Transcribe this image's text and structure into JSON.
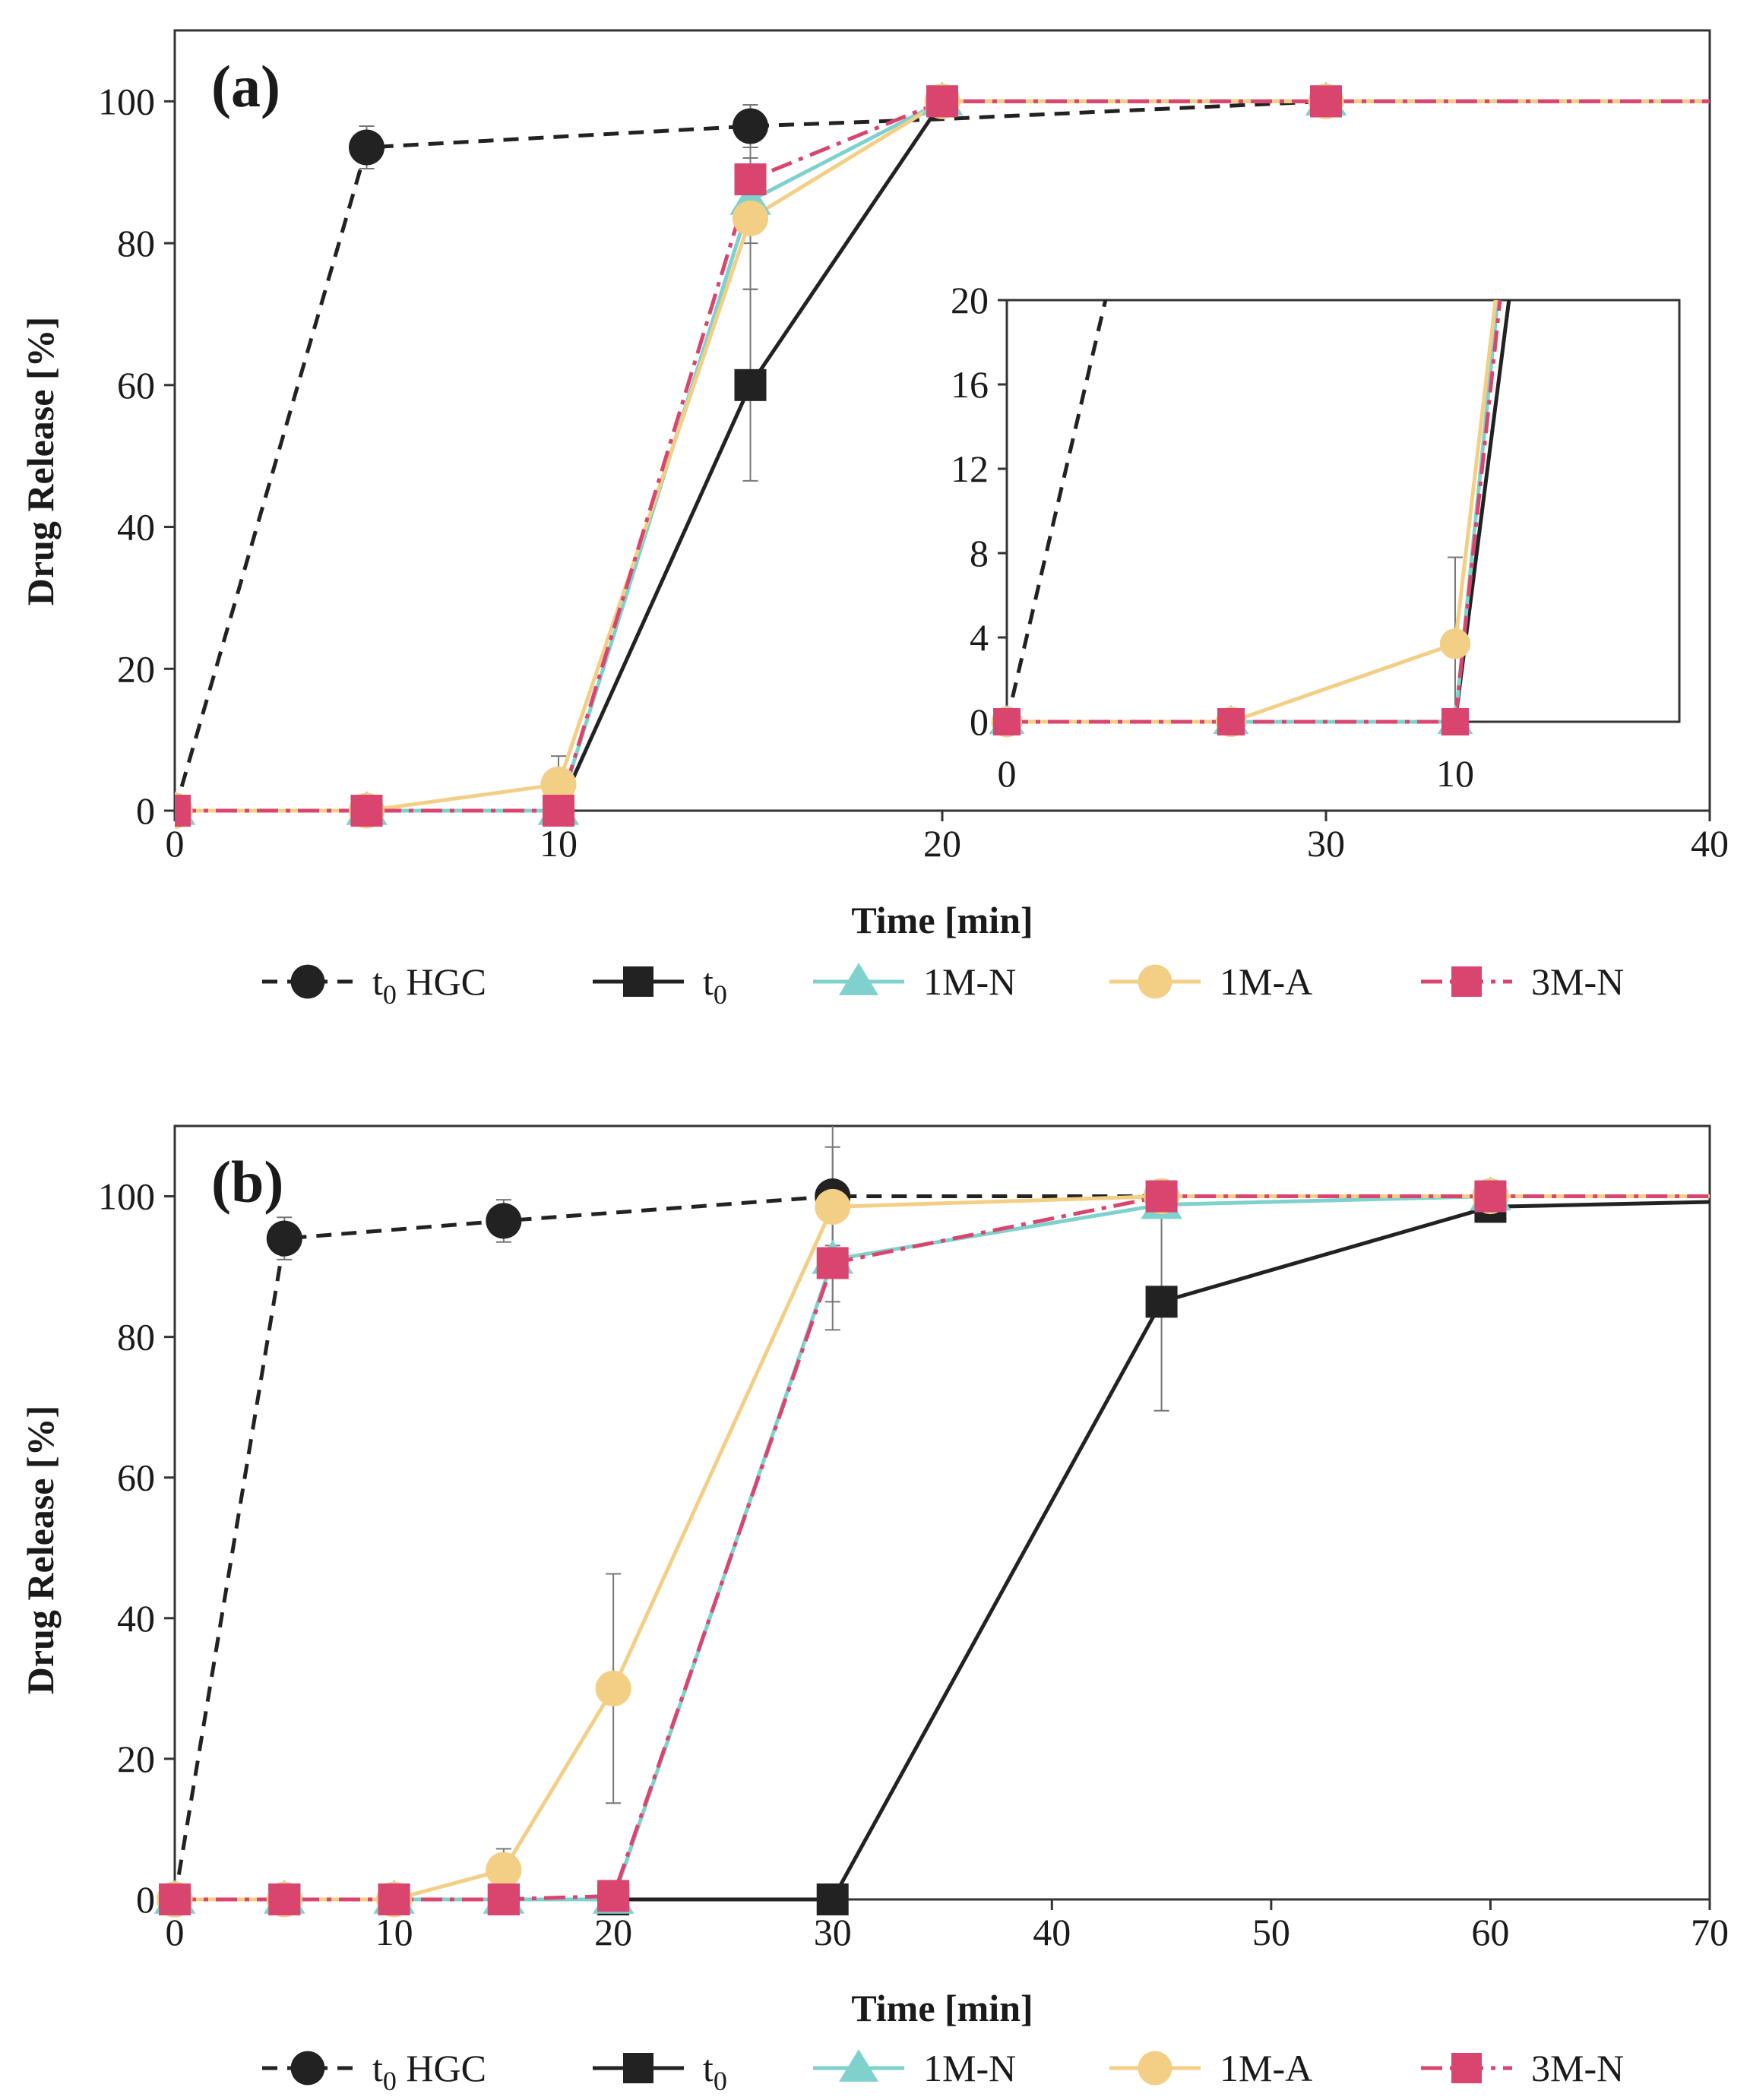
{
  "figure": {
    "legend_entries": [
      {
        "key": "t0hgc",
        "label": "t",
        "sub": "0",
        "suffix": " HGC",
        "color": "#222222",
        "marker": "circle",
        "dash": "dashed"
      },
      {
        "key": "t0",
        "label": "t",
        "sub": "0",
        "suffix": "",
        "color": "#222222",
        "marker": "square",
        "dash": "solid"
      },
      {
        "key": "m1n",
        "label": "1M-N",
        "sub": "",
        "suffix": "",
        "color": "#7fd1cd",
        "marker": "triangle",
        "dash": "solid"
      },
      {
        "key": "m1a",
        "label": "1M-A",
        "sub": "",
        "suffix": "",
        "color": "#f3cf86",
        "marker": "circle",
        "dash": "solid"
      },
      {
        "key": "m3n",
        "label": "3M-N",
        "sub": "",
        "suffix": "",
        "color": "#d9456e",
        "marker": "square",
        "dash": "dashdot"
      }
    ]
  },
  "chart_data": [
    {
      "panel_label": "(a)",
      "type": "line",
      "title": "",
      "xlabel": "Time [min]",
      "ylabel": "Drug Release [%]",
      "xlim": [
        0,
        40
      ],
      "ylim": [
        0,
        110
      ],
      "xticks": [
        0,
        10,
        20,
        30,
        40
      ],
      "yticks": [
        0,
        20,
        40,
        60,
        80,
        100
      ],
      "legend_position": "bottom",
      "series": [
        {
          "key": "t0hgc",
          "name": "t0 HGC",
          "x": [
            0,
            5,
            15,
            20,
            30
          ],
          "y": [
            0,
            93.5,
            96.5,
            97.5,
            100
          ],
          "err": [
            0,
            3,
            3,
            0,
            0
          ],
          "markers": [
            0,
            5,
            15
          ]
        },
        {
          "key": "t0",
          "name": "t0",
          "x": [
            0,
            5,
            10,
            15,
            20,
            30,
            40
          ],
          "y": [
            0,
            0,
            0,
            60,
            100,
            100,
            100
          ],
          "err": [
            0,
            0,
            0,
            13.5,
            0,
            0,
            0
          ],
          "markers": [
            0,
            5,
            10,
            15,
            20,
            30
          ]
        },
        {
          "key": "m1n",
          "name": "1M-N",
          "x": [
            0,
            5,
            10,
            15,
            20,
            30,
            40
          ],
          "y": [
            0,
            0,
            0,
            86,
            100,
            100,
            100
          ],
          "err": [
            0,
            0,
            0,
            6,
            0,
            0,
            0
          ],
          "markers": [
            0,
            5,
            10,
            15,
            20,
            30
          ]
        },
        {
          "key": "m1a",
          "name": "1M-A",
          "x": [
            0,
            5,
            10,
            15,
            20,
            30,
            40
          ],
          "y": [
            0,
            0,
            3.7,
            83.5,
            100,
            100,
            100
          ],
          "err": [
            0,
            0,
            4,
            10,
            0,
            0,
            0
          ],
          "markers": [
            0,
            5,
            10,
            15,
            20,
            30
          ]
        },
        {
          "key": "m3n",
          "name": "3M-N",
          "x": [
            0,
            5,
            10,
            15,
            20,
            30,
            40
          ],
          "y": [
            0,
            0,
            0,
            89,
            100,
            100,
            100
          ],
          "err": [
            0,
            0,
            0,
            3,
            0,
            0,
            0
          ],
          "markers": [
            0,
            5,
            10,
            15,
            20,
            30
          ]
        }
      ],
      "inset": {
        "xlim": [
          0,
          15
        ],
        "ylim": [
          0,
          20
        ],
        "xticks": [
          0,
          10
        ],
        "yticks": [
          0,
          4,
          8,
          12,
          16,
          20
        ],
        "series": [
          {
            "key": "t0hgc",
            "x": [
              0,
              2.2
            ],
            "y": [
              0,
              20
            ],
            "err": [
              0,
              0
            ],
            "markers": [
              0
            ]
          },
          {
            "key": "t0",
            "x": [
              0,
              5,
              10,
              11.2
            ],
            "y": [
              0,
              0,
              0,
              20
            ],
            "err": [
              0,
              0,
              0,
              0
            ],
            "markers": [
              0,
              5,
              10
            ]
          },
          {
            "key": "m1n",
            "x": [
              0,
              5,
              10,
              10.95
            ],
            "y": [
              0,
              0,
              0,
              20
            ],
            "err": [
              0,
              0,
              0,
              0
            ],
            "markers": [
              0,
              5,
              10
            ]
          },
          {
            "key": "m1a",
            "x": [
              0,
              5,
              10,
              10.9
            ],
            "y": [
              0,
              0,
              3.7,
              20
            ],
            "err": [
              0,
              0,
              4.1,
              0
            ],
            "markers": [
              0,
              5,
              10
            ]
          },
          {
            "key": "m3n",
            "x": [
              0,
              5,
              10,
              11.0
            ],
            "y": [
              0,
              0,
              0,
              20
            ],
            "err": [
              0,
              0,
              0,
              0
            ],
            "markers": [
              0,
              5,
              10
            ]
          }
        ]
      }
    },
    {
      "panel_label": "(b)",
      "type": "line",
      "title": "",
      "xlabel": "Time [min]",
      "ylabel": "Drug Release [%]",
      "xlim": [
        0,
        70
      ],
      "ylim": [
        0,
        110
      ],
      "xticks": [
        0,
        10,
        20,
        30,
        40,
        50,
        60,
        70
      ],
      "yticks": [
        0,
        20,
        40,
        60,
        80,
        100
      ],
      "legend_position": "bottom",
      "series": [
        {
          "key": "t0hgc",
          "name": "t0 HGC",
          "x": [
            0,
            5,
            15,
            30,
            45,
            60,
            70
          ],
          "y": [
            0,
            94,
            96.5,
            100,
            100,
            100,
            100
          ],
          "err": [
            0,
            3,
            3,
            7,
            0,
            0,
            0
          ],
          "markers": [
            0,
            5,
            15,
            30,
            45,
            60
          ]
        },
        {
          "key": "t0",
          "name": "t0",
          "x": [
            0,
            5,
            10,
            15,
            20,
            30,
            45,
            60,
            70
          ],
          "y": [
            0,
            0,
            0,
            0,
            0,
            0,
            85,
            98.5,
            99.2
          ],
          "err": [
            0,
            0,
            0,
            0,
            0,
            0,
            15.5,
            0,
            0
          ],
          "markers": [
            0,
            5,
            10,
            15,
            20,
            30,
            45,
            60
          ]
        },
        {
          "key": "m1n",
          "name": "1M-N",
          "x": [
            0,
            5,
            10,
            15,
            20,
            30,
            45,
            60,
            70
          ],
          "y": [
            0,
            0,
            0,
            0,
            0,
            91,
            98.8,
            100,
            100
          ],
          "err": [
            0,
            0,
            0,
            0,
            0,
            6,
            0,
            0,
            0
          ],
          "markers": [
            0,
            5,
            10,
            15,
            20,
            30,
            45,
            60
          ]
        },
        {
          "key": "m1a",
          "name": "1M-A",
          "x": [
            0,
            5,
            10,
            15,
            20,
            30,
            45,
            60,
            70
          ],
          "y": [
            0,
            0,
            0,
            4.2,
            30,
            98.5,
            100,
            100,
            100
          ],
          "err": [
            0,
            0,
            0,
            3,
            16.3,
            17.5,
            0,
            0,
            0
          ],
          "markers": [
            0,
            5,
            10,
            15,
            20,
            30,
            45,
            60
          ]
        },
        {
          "key": "m3n",
          "name": "3M-N",
          "x": [
            0,
            5,
            10,
            15,
            20,
            30,
            45,
            60,
            70
          ],
          "y": [
            0,
            0,
            0,
            0,
            0.5,
            90.5,
            100,
            100,
            100
          ],
          "err": [
            0,
            0,
            0,
            0,
            0,
            0,
            0,
            0,
            0
          ],
          "markers": [
            0,
            5,
            10,
            15,
            20,
            30,
            45,
            60
          ]
        }
      ]
    }
  ]
}
